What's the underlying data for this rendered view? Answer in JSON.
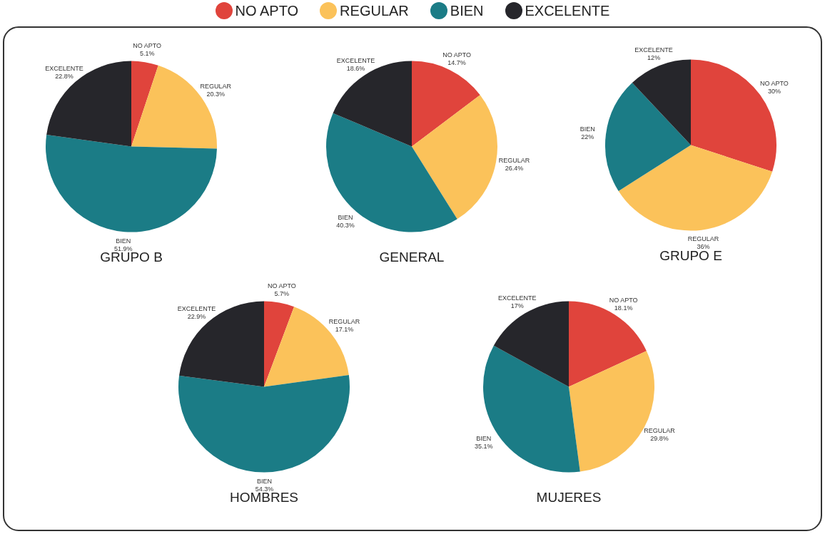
{
  "chart_data": [
    {
      "type": "pie",
      "title": "GRUPO B",
      "legend": "top",
      "categories": [
        "NO APTO",
        "REGULAR",
        "BIEN",
        "EXCELENTE"
      ],
      "values": [
        5.1,
        20.3,
        51.9,
        22.8
      ],
      "value_labels": [
        "5.1%",
        "20.3%",
        "51.9%",
        "22.8%"
      ],
      "colors": [
        "#e0443c",
        "#fbc25a",
        "#1b7c86",
        "#26262b"
      ]
    },
    {
      "type": "pie",
      "title": "GENERAL",
      "categories": [
        "NO APTO",
        "REGULAR",
        "BIEN",
        "EXCELENTE"
      ],
      "values": [
        14.7,
        26.4,
        40.3,
        18.6
      ],
      "value_labels": [
        "14.7%",
        "26.4%",
        "40.3%",
        "18.6%"
      ],
      "colors": [
        "#e0443c",
        "#fbc25a",
        "#1b7c86",
        "#26262b"
      ]
    },
    {
      "type": "pie",
      "title": "GRUPO E",
      "categories": [
        "NO APTO",
        "REGULAR",
        "BIEN",
        "EXCELENTE"
      ],
      "values": [
        30,
        36,
        22,
        12
      ],
      "value_labels": [
        "30%",
        "36%",
        "22%",
        "12%"
      ],
      "colors": [
        "#e0443c",
        "#fbc25a",
        "#1b7c86",
        "#26262b"
      ]
    },
    {
      "type": "pie",
      "title": "HOMBRES",
      "categories": [
        "NO APTO",
        "REGULAR",
        "BIEN",
        "EXCELENTE"
      ],
      "values": [
        5.7,
        17.1,
        54.3,
        22.9
      ],
      "value_labels": [
        "5.7%",
        "17.1%",
        "54.3%",
        "22.9%"
      ],
      "colors": [
        "#e0443c",
        "#fbc25a",
        "#1b7c86",
        "#26262b"
      ]
    },
    {
      "type": "pie",
      "title": "MUJERES",
      "categories": [
        "NO APTO",
        "REGULAR",
        "BIEN",
        "EXCELENTE"
      ],
      "values": [
        18.1,
        29.8,
        35.1,
        17
      ],
      "value_labels": [
        "18.1%",
        "29.8%",
        "35.1%",
        "17%"
      ],
      "colors": [
        "#e0443c",
        "#fbc25a",
        "#1b7c86",
        "#26262b"
      ]
    }
  ]
}
